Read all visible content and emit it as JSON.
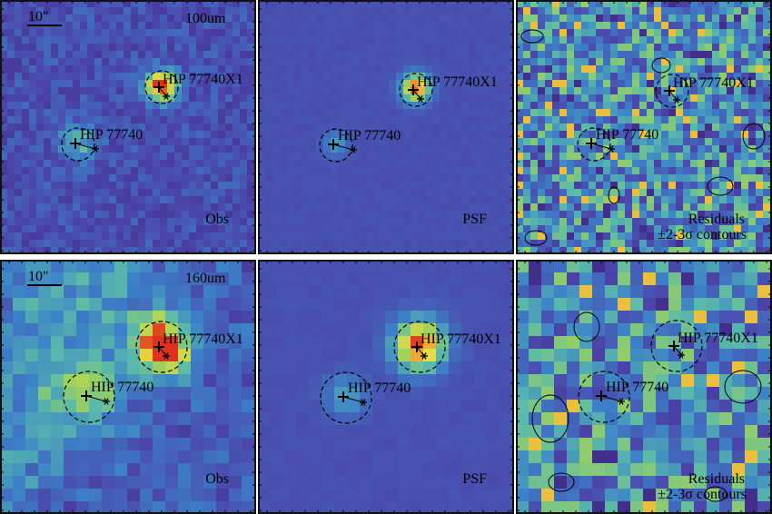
{
  "panels": [
    {
      "id": "obs-100",
      "wavelength_label": "100um",
      "scale_label": "10\"",
      "kind_label": "Obs",
      "kind_label2": "",
      "bg": "obs"
    },
    {
      "id": "psf-100",
      "wavelength_label": "",
      "scale_label": "",
      "kind_label": "PSF",
      "kind_label2": "",
      "bg": "psf"
    },
    {
      "id": "res-100",
      "wavelength_label": "",
      "scale_label": "",
      "kind_label": "Residuals",
      "kind_label2": "±2-3σ contours",
      "bg": "res"
    },
    {
      "id": "obs-160",
      "wavelength_label": "160um",
      "scale_label": "10\"",
      "kind_label": "Obs",
      "kind_label2": "",
      "bg": "obs"
    },
    {
      "id": "psf-160",
      "wavelength_label": "",
      "scale_label": "",
      "kind_label": "PSF",
      "kind_label2": "",
      "bg": "psf"
    },
    {
      "id": "res-160",
      "wavelength_label": "",
      "scale_label": "",
      "kind_label": "Residuals",
      "kind_label2": "±2-3σ contours",
      "bg": "res"
    }
  ],
  "sources": {
    "primary": "HIP 77740",
    "companion": "HIP 77740X1"
  },
  "colors": {
    "obs_base": "#5b4c9a",
    "psf_base": "#3e56b0",
    "res_base": "#8fc36a",
    "hot": "#e8532a",
    "warm": "#f1a23a"
  }
}
